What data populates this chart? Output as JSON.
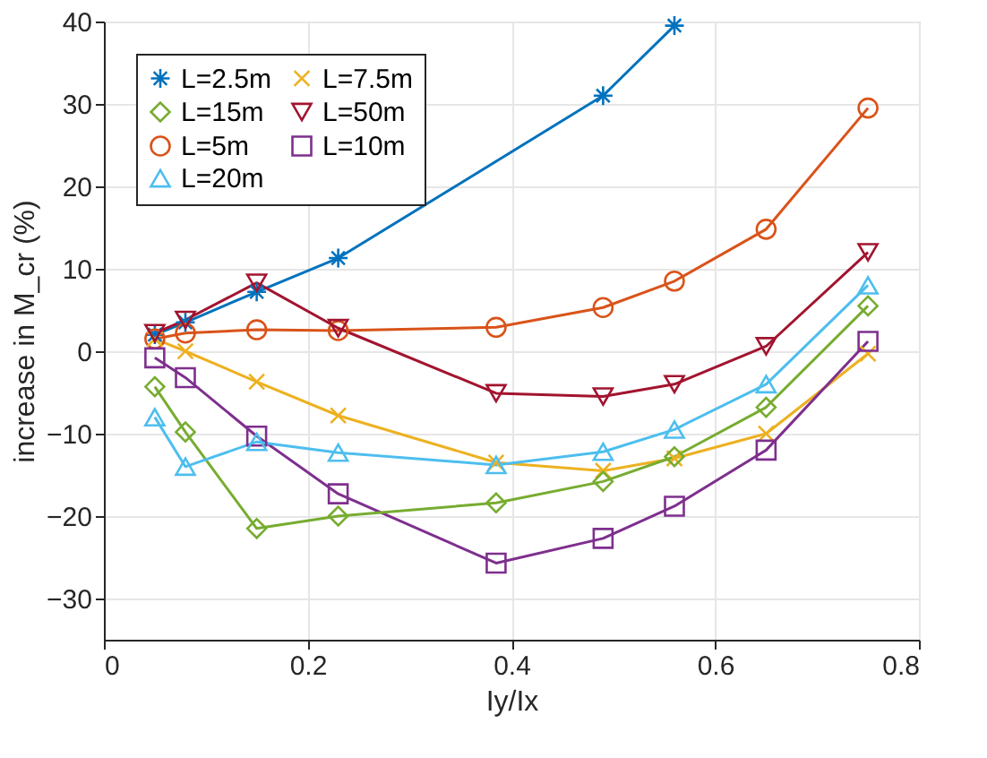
{
  "chart_data": {
    "type": "line",
    "xlabel": "Iy/Ix",
    "ylabel": "increase in M_cr (%)",
    "x": [
      0.05,
      0.08,
      0.15,
      0.23,
      0.385,
      0.49,
      0.56,
      0.65,
      0.75
    ],
    "series": [
      {
        "name": "L=2.5m",
        "color": "#0072bd",
        "marker": "cross",
        "x": [
          0.05,
          0.08,
          0.15,
          0.23,
          0.49,
          0.56
        ],
        "values": [
          2,
          3.5,
          7.2,
          11.3,
          31,
          39.5
        ]
      },
      {
        "name": "L=5m",
        "color": "#d95319",
        "marker": "circle",
        "values": [
          1.5,
          2.2,
          2.6,
          2.5,
          2.9,
          5.3,
          8.5,
          14.8,
          29.5
        ]
      },
      {
        "name": "L=7.5m",
        "color": "#edb120",
        "marker": "cross",
        "values": [
          1.5,
          0,
          -3.7,
          -7.8,
          -13.5,
          -14.5,
          -13,
          -10,
          -0.3
        ]
      },
      {
        "name": "L=10m",
        "color": "#7e2f8e",
        "marker": "square",
        "values": [
          -0.8,
          -3.2,
          -10.3,
          -17.3,
          -25.7,
          -22.7,
          -18.8,
          -12,
          1.2
        ]
      },
      {
        "name": "L=15m",
        "color": "#77ac30",
        "marker": "diamond",
        "values": [
          -4.3,
          -9.8,
          -21.5,
          -20,
          -18.4,
          -15.8,
          -12.8,
          -6.8,
          5.5
        ]
      },
      {
        "name": "L=20m",
        "color": "#4dbeee",
        "marker": "triangle",
        "values": [
          -8,
          -14,
          -11,
          -12.3,
          -13.8,
          -12.2,
          -9.5,
          -4,
          8
        ]
      },
      {
        "name": "L=50m",
        "color": "#a2142f",
        "marker": "triangle-down",
        "values": [
          2.2,
          3.8,
          8.3,
          2.8,
          -5.1,
          -5.5,
          -4,
          0.6,
          12
        ]
      }
    ],
    "xlim": [
      0,
      0.8
    ],
    "xticks": [
      0,
      0.2,
      0.4,
      0.6,
      0.8
    ],
    "ylim": [
      -35,
      40
    ],
    "yticks": [
      -30,
      -20,
      -10,
      0,
      10,
      20,
      30,
      40
    ],
    "grid": true,
    "legend": "top left",
    "line_style": "solid"
  }
}
